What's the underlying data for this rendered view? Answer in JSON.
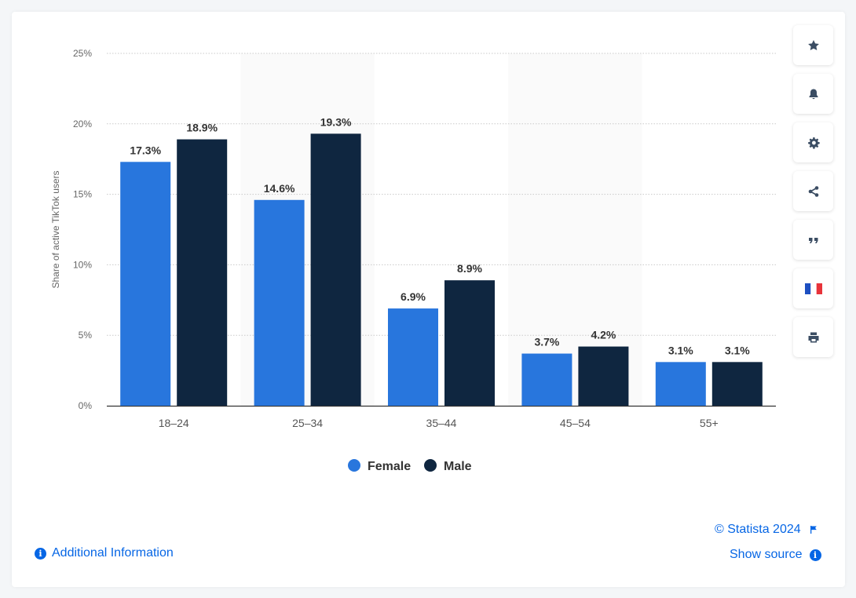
{
  "chart_data": {
    "type": "bar",
    "categories": [
      "18-24",
      "25-34",
      "35-44",
      "45-54",
      "55+"
    ],
    "series": [
      {
        "name": "Female",
        "values": [
          17.3,
          14.6,
          6.9,
          3.7,
          3.1
        ],
        "color": "#2876dd"
      },
      {
        "name": "Male",
        "values": [
          18.9,
          19.3,
          8.9,
          4.2,
          3.1
        ],
        "color": "#0f2640"
      }
    ],
    "data_labels": {
      "Female": [
        "17.3%",
        "14.6%",
        "6.9%",
        "3.7%",
        "3.1%"
      ],
      "Male": [
        "18.9%",
        "19.3%",
        "8.9%",
        "4.2%",
        "3.1%"
      ]
    },
    "ylabel": "Share of active TikTok users",
    "ylim": [
      0,
      25
    ],
    "yticks": [
      0,
      5,
      10,
      15,
      20,
      25
    ],
    "ytick_labels": [
      "0%",
      "5%",
      "10%",
      "15%",
      "20%",
      "25%"
    ],
    "xtick_labels": [
      "18–24",
      "25–34",
      "35–44",
      "45–54",
      "55+"
    ],
    "grid": true,
    "legend_position": "bottom-center"
  },
  "toolbar": {
    "buttons": [
      {
        "name": "favorite-button",
        "icon": "star-icon"
      },
      {
        "name": "notification-button",
        "icon": "bell-icon"
      },
      {
        "name": "settings-button",
        "icon": "gear-icon"
      },
      {
        "name": "share-button",
        "icon": "share-icon"
      },
      {
        "name": "cite-button",
        "icon": "quote-icon"
      },
      {
        "name": "language-button",
        "icon": "french-flag-icon"
      },
      {
        "name": "print-button",
        "icon": "print-icon"
      }
    ]
  },
  "footer": {
    "copyright": "© Statista 2024",
    "show_source": "Show source",
    "additional_info": "Additional Information"
  }
}
